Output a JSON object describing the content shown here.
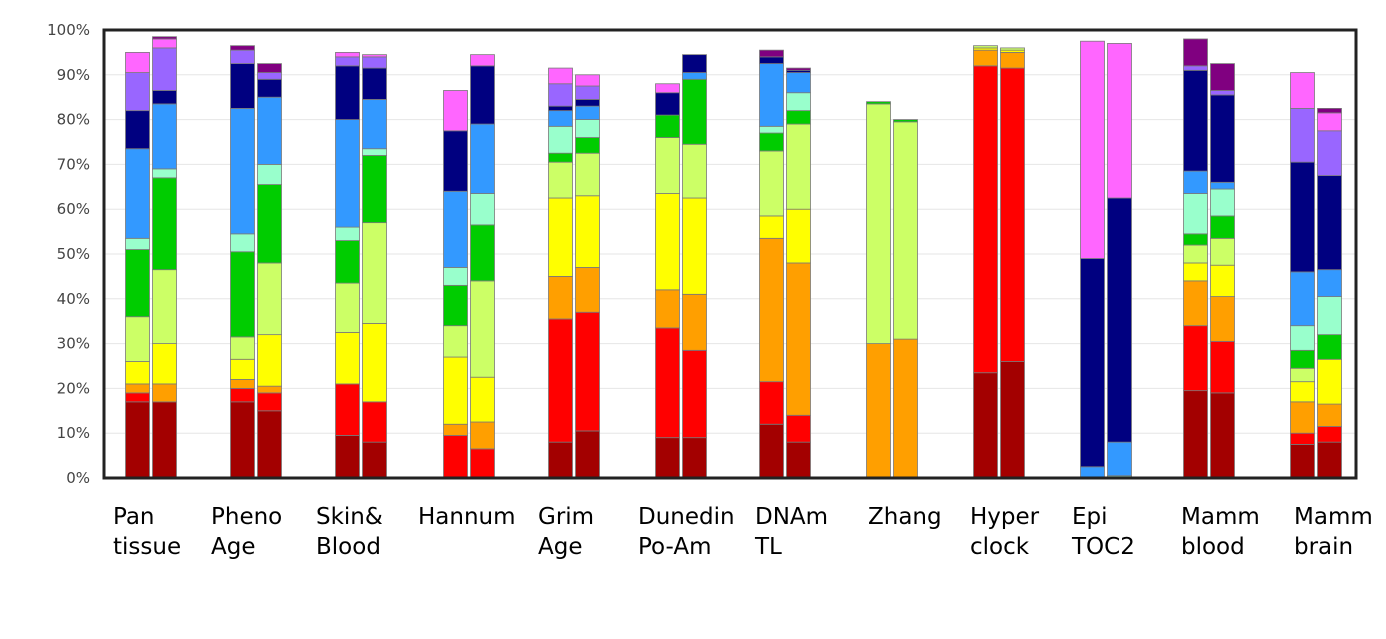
{
  "chart_data": {
    "type": "bar",
    "stacked": true,
    "ylim": [
      0,
      100
    ],
    "y_ticks": [
      {
        "value": 0,
        "label": "0%"
      },
      {
        "value": 10,
        "label": "10%"
      },
      {
        "value": 20,
        "label": "20%"
      },
      {
        "value": 30,
        "label": "30%"
      },
      {
        "value": 40,
        "label": "40%"
      },
      {
        "value": 50,
        "label": "50%"
      },
      {
        "value": 60,
        "label": "60%"
      },
      {
        "value": 70,
        "label": "70%"
      },
      {
        "value": 80,
        "label": "80%"
      },
      {
        "value": 90,
        "label": "90%"
      },
      {
        "value": 100,
        "label": "100%"
      }
    ],
    "layer_colors": [
      "#a30000",
      "#ff0000",
      "#ff9f00",
      "#ffff00",
      "#ccff66",
      "#00cc00",
      "#99ffcc",
      "#3399ff",
      "#000080",
      "#9966ff",
      "#ff66ff",
      "#800080"
    ],
    "groups": [
      {
        "label_lines": [
          "Pan",
          "tissue"
        ],
        "bars": [
          [
            17,
            2,
            2,
            5,
            10,
            15,
            2.5,
            20,
            8.5,
            8.5,
            4.5,
            0
          ],
          [
            17,
            0,
            4,
            9,
            16.5,
            20.5,
            2,
            14.5,
            3,
            9.5,
            2,
            0.5
          ]
        ]
      },
      {
        "label_lines": [
          "Pheno",
          "Age"
        ],
        "bars": [
          [
            17,
            3,
            2,
            4.5,
            5,
            19,
            4,
            28,
            10,
            3,
            0,
            1
          ],
          [
            15,
            4,
            1.5,
            11.5,
            16,
            17.5,
            4.5,
            15,
            4,
            1.5,
            0,
            2
          ]
        ]
      },
      {
        "label_lines": [
          "Skin&",
          "Blood"
        ],
        "bars": [
          [
            9.5,
            11.5,
            0,
            11.5,
            11,
            9.5,
            3,
            24,
            12,
            2,
            1,
            0
          ],
          [
            8,
            9,
            0,
            17.5,
            22.5,
            15,
            1.5,
            11,
            7,
            2.5,
            0.5,
            0
          ]
        ]
      },
      {
        "label_lines": [
          "Hannum"
        ],
        "bars": [
          [
            0,
            9.5,
            2.5,
            15,
            7,
            9,
            4,
            17,
            13.5,
            0,
            9,
            0
          ],
          [
            0,
            6.5,
            6,
            10,
            21.5,
            12.5,
            7,
            15.5,
            13,
            0,
            2.5,
            0
          ]
        ]
      },
      {
        "label_lines": [
          "Grim",
          "Age"
        ],
        "bars": [
          [
            8,
            27.5,
            9.5,
            17.5,
            8,
            2,
            6,
            3.5,
            1,
            5,
            3.5,
            0
          ],
          [
            10.5,
            26.5,
            10,
            16,
            9.5,
            3.5,
            4,
            3,
            1.5,
            3,
            2.5,
            0
          ]
        ]
      },
      {
        "label_lines": [
          "Dunedin",
          "Po-Am"
        ],
        "bars": [
          [
            9,
            24.5,
            8.5,
            21.5,
            12.5,
            5,
            0,
            0,
            5,
            0,
            2,
            0
          ],
          [
            9,
            19.5,
            12.5,
            21.5,
            12,
            14.5,
            0,
            1.5,
            4,
            0,
            0,
            0
          ]
        ]
      },
      {
        "label_lines": [
          "DNAm",
          "TL"
        ],
        "bars": [
          [
            12,
            9.5,
            32,
            5,
            14.5,
            4,
            1.5,
            14,
            1.5,
            0,
            0,
            1.5
          ],
          [
            8,
            6,
            34,
            12,
            19,
            3,
            4,
            4.5,
            0.5,
            0,
            0,
            0.5
          ]
        ]
      },
      {
        "label_lines": [
          "Zhang"
        ],
        "bars": [
          [
            0,
            0,
            30,
            0,
            53.5,
            0.5,
            0,
            0,
            0,
            0,
            0,
            0
          ],
          [
            0,
            0,
            31,
            0,
            48.5,
            0.5,
            0,
            0,
            0,
            0,
            0,
            0
          ]
        ]
      },
      {
        "label_lines": [
          "Hyper",
          "clock"
        ],
        "bars": [
          [
            23.5,
            68.5,
            3.5,
            0.5,
            0.5,
            0,
            0,
            0,
            0,
            0,
            0,
            0
          ],
          [
            26,
            65.5,
            3.5,
            0.5,
            0.5,
            0,
            0,
            0,
            0,
            0,
            0,
            0
          ]
        ]
      },
      {
        "label_lines": [
          "Epi",
          "TOC2"
        ],
        "bars": [
          [
            0,
            0,
            0,
            0,
            0,
            0,
            0,
            2.5,
            46.5,
            0,
            48.5,
            0
          ],
          [
            0,
            0,
            0,
            0,
            0,
            0,
            0.5,
            7.5,
            54.5,
            0,
            34.5,
            0
          ]
        ]
      },
      {
        "label_lines": [
          "Mamm",
          "blood"
        ],
        "bars": [
          [
            19.5,
            14.5,
            10,
            4,
            4,
            2.5,
            9,
            5,
            22.5,
            1,
            0,
            6
          ],
          [
            19,
            11.5,
            10,
            7,
            6,
            5,
            6,
            1.5,
            19.5,
            1,
            0,
            6
          ]
        ]
      },
      {
        "label_lines": [
          "Mamm",
          "brain"
        ],
        "bars": [
          [
            7.5,
            2.5,
            7,
            4.5,
            3,
            4,
            5.5,
            12,
            24.5,
            12,
            8,
            0
          ],
          [
            8,
            3.5,
            5,
            10,
            0,
            5.5,
            8.5,
            6,
            21,
            10,
            4,
            1
          ]
        ]
      }
    ]
  }
}
